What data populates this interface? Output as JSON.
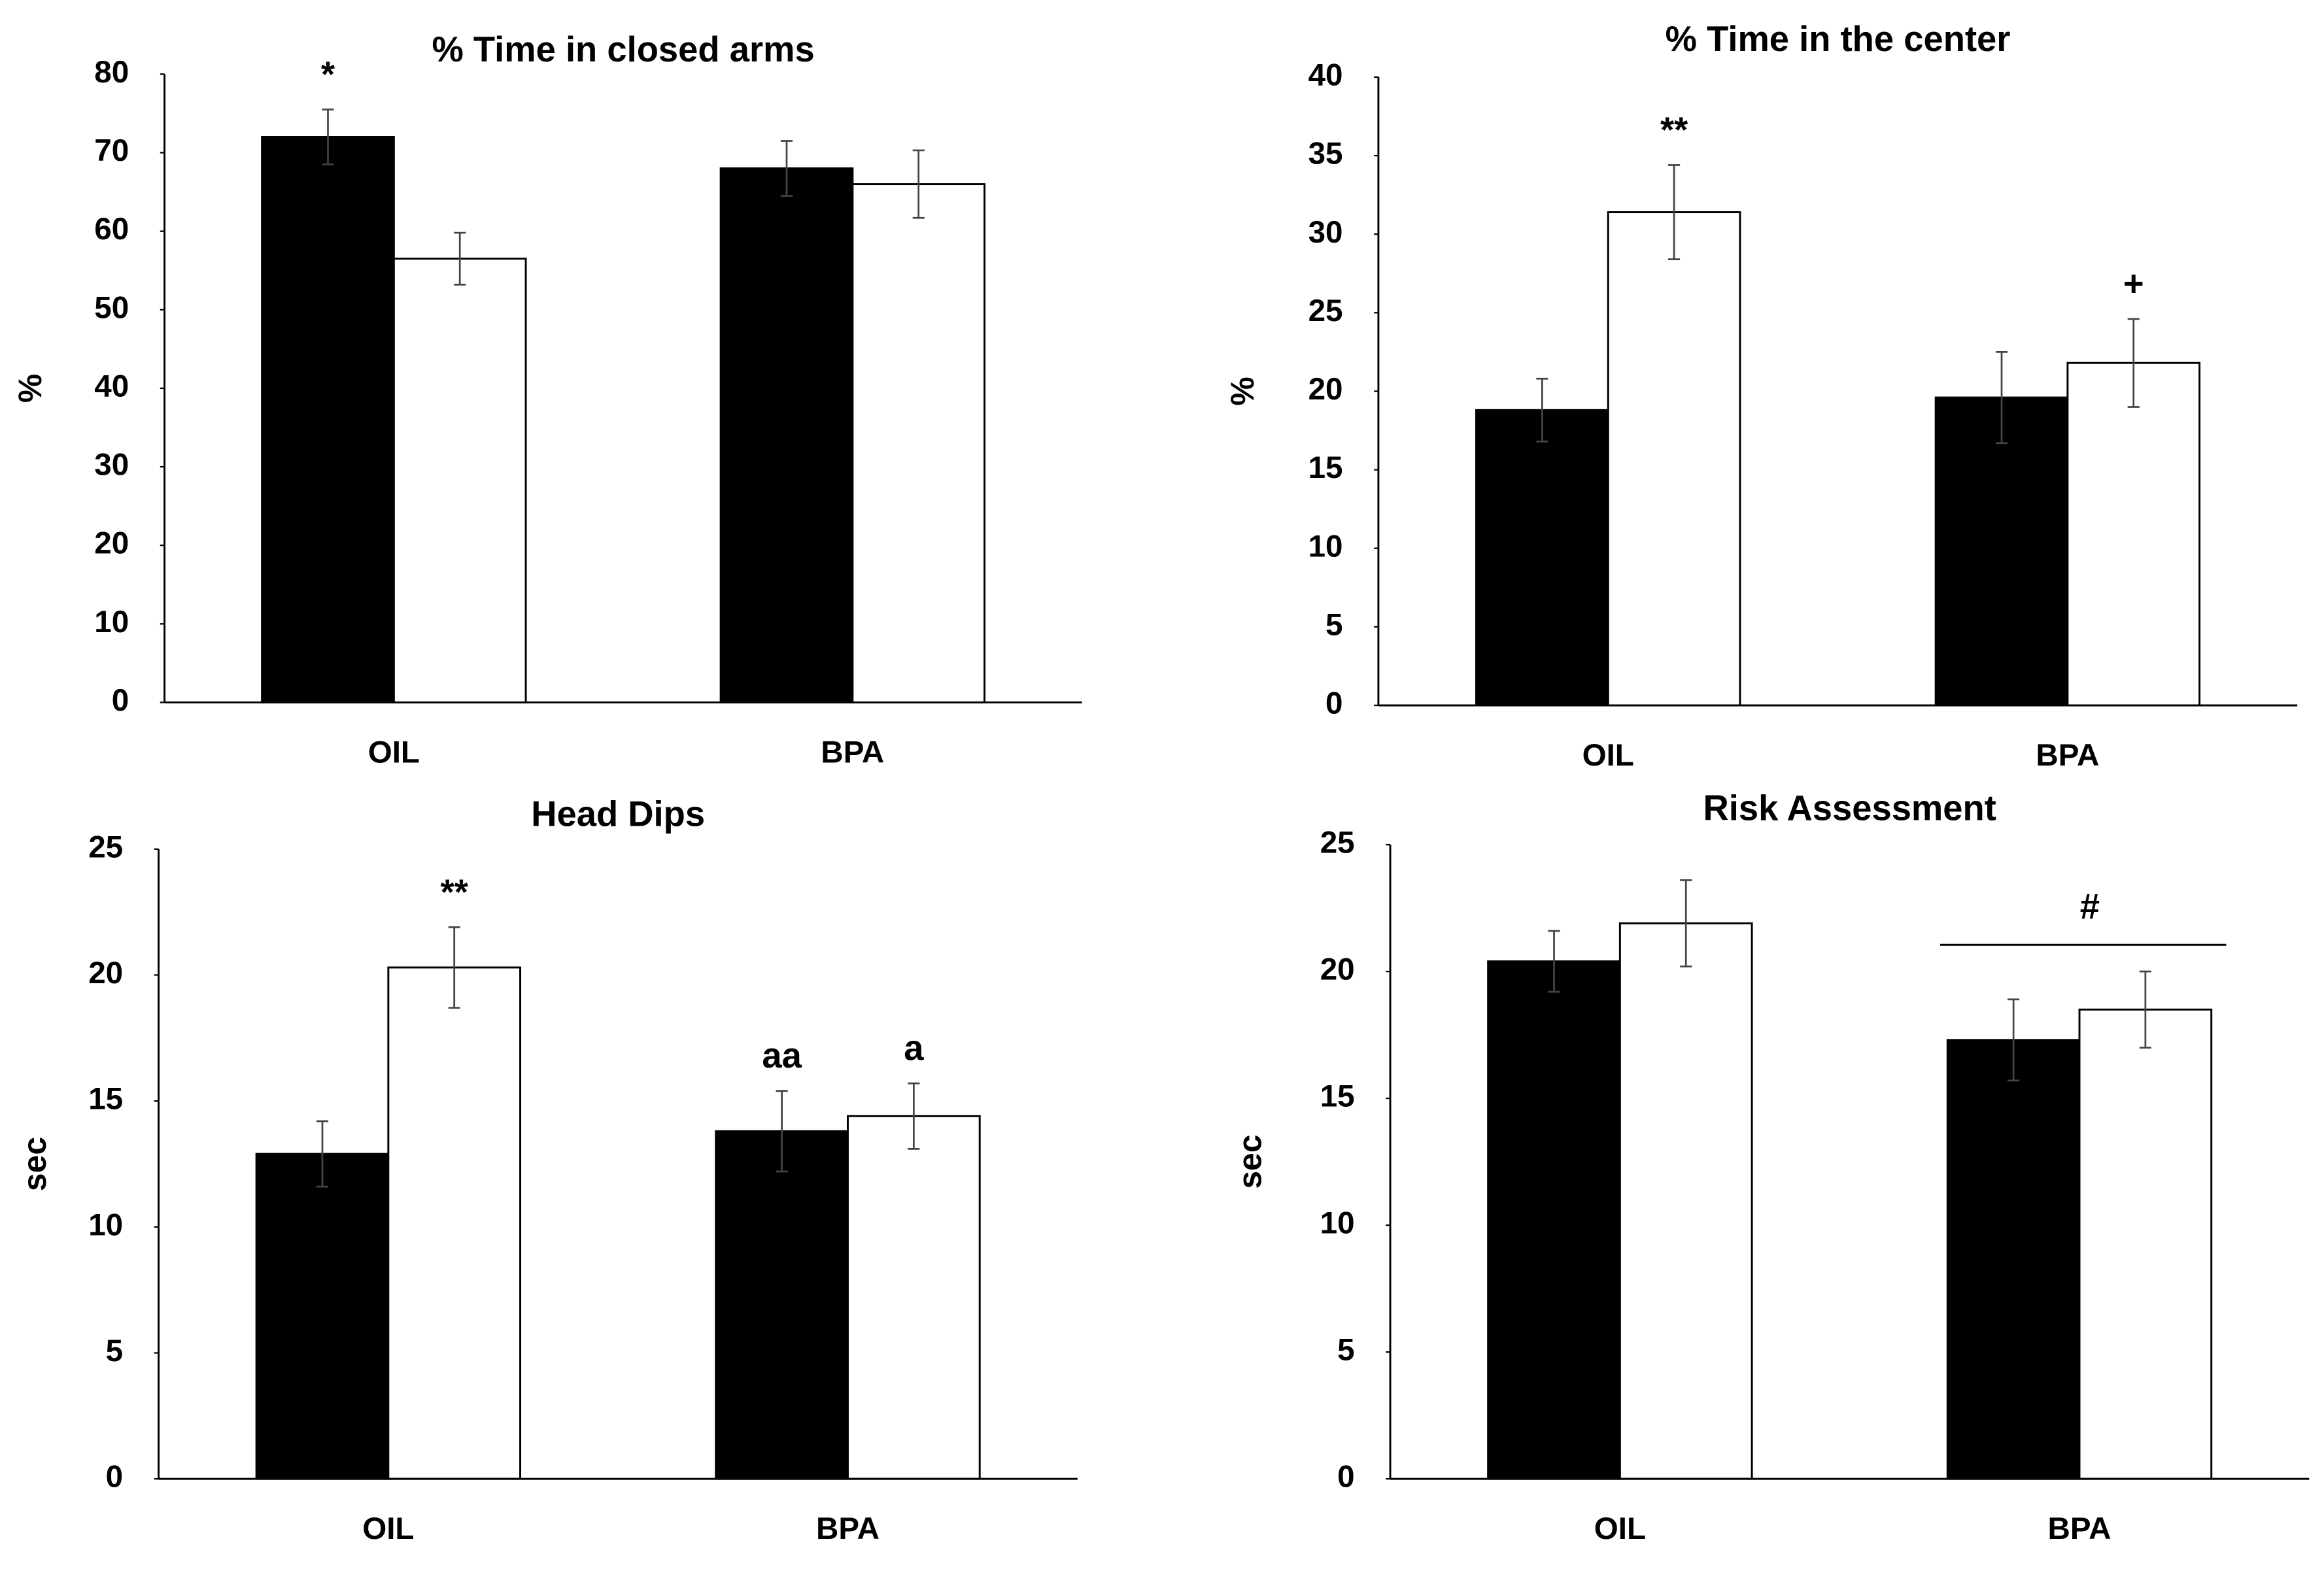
{
  "chart_data": [
    {
      "type": "bar",
      "title": "% Time in closed arms",
      "y_label": "%",
      "categories": [
        "OIL",
        "BPA"
      ],
      "series": [
        {
          "color": "#000000",
          "values": [
            72,
            68
          ],
          "errors": [
            3.5,
            3.5
          ],
          "annotations": [
            "*",
            null
          ]
        },
        {
          "color": "#ffffff",
          "values": [
            56.5,
            66
          ],
          "errors": [
            3.3,
            4.3
          ]
        }
      ],
      "ylim": [
        0,
        80
      ],
      "yticks": [
        0,
        10,
        20,
        30,
        40,
        50,
        60,
        70,
        80
      ]
    },
    {
      "type": "bar",
      "title": "% Time in the center",
      "y_label": "%",
      "categories": [
        "OIL",
        "BPA"
      ],
      "series": [
        {
          "color": "#000000",
          "values": [
            18.8,
            19.6
          ],
          "errors": [
            2,
            2.9
          ]
        },
        {
          "color": "#ffffff",
          "values": [
            31.4,
            21.8
          ],
          "errors": [
            3,
            2.8
          ],
          "annotations": [
            "**",
            "+"
          ]
        }
      ],
      "ylim": [
        0,
        40
      ],
      "yticks": [
        0,
        5,
        10,
        15,
        20,
        25,
        30,
        35,
        40
      ]
    },
    {
      "type": "bar",
      "title": "Head Dips",
      "y_label": "sec",
      "categories": [
        "OIL",
        "BPA"
      ],
      "series": [
        {
          "color": "#000000",
          "values": [
            12.9,
            13.8
          ],
          "errors": [
            1.3,
            1.6
          ],
          "annotations": [
            null,
            "aa"
          ]
        },
        {
          "color": "#ffffff",
          "values": [
            20.3,
            14.4
          ],
          "errors": [
            1.6,
            1.3
          ],
          "annotations": [
            "**",
            "a"
          ]
        }
      ],
      "ylim": [
        0,
        25
      ],
      "yticks": [
        0,
        5,
        10,
        15,
        20,
        25
      ]
    },
    {
      "type": "bar",
      "title": "Risk Assessment",
      "y_label": "sec",
      "categories": [
        "OIL",
        "BPA"
      ],
      "series": [
        {
          "color": "#000000",
          "values": [
            20.4,
            17.3
          ],
          "errors": [
            1.2,
            1.6
          ]
        },
        {
          "color": "#ffffff",
          "values": [
            21.9,
            18.5
          ],
          "errors": [
            1.7,
            1.5
          ]
        }
      ],
      "group_annotations": [
        null,
        "#"
      ],
      "ylim": [
        0,
        25
      ],
      "yticks": [
        0,
        5,
        10,
        15,
        20,
        25
      ]
    }
  ]
}
